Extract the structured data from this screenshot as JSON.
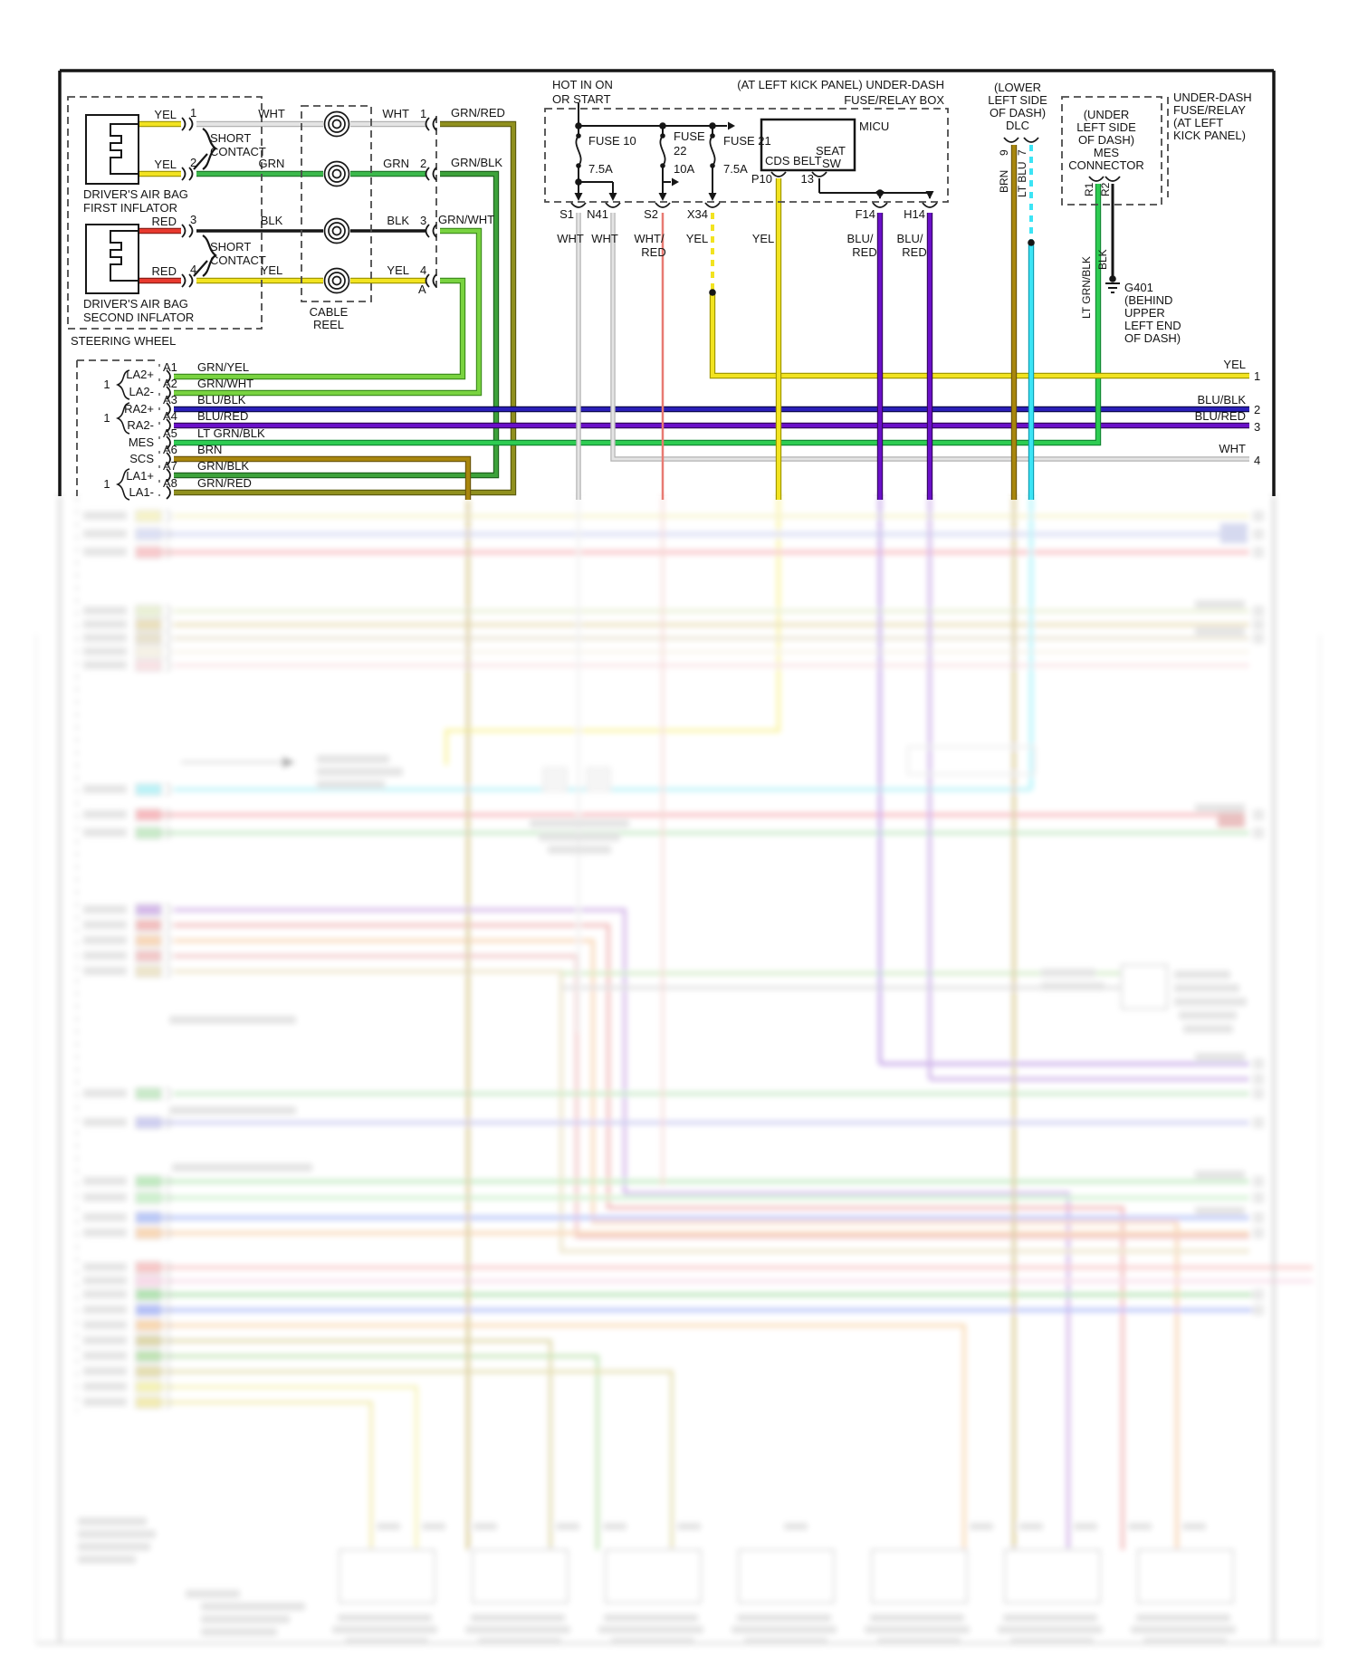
{
  "steering": {
    "label": "STEERING WHEEL",
    "first_inflator_l1": "DRIVER'S AIR BAG",
    "first_inflator_l2": "FIRST INFLATOR",
    "second_inflator_l1": "DRIVER'S AIR BAG",
    "second_inflator_l2": "SECOND INFLATOR",
    "short1": "SHORT",
    "contact1": "CONTACT",
    "short2": "SHORT",
    "contact2": "CONTACT",
    "pin_a": "A",
    "rows": [
      {
        "left": "YEL",
        "pin": "1",
        "mid": "WHT",
        "right": "WHT",
        "rnum": "1",
        "out": "GRN/RED"
      },
      {
        "left": "YEL",
        "pin": "2",
        "mid": "GRN",
        "right": "GRN",
        "rnum": "2",
        "out": "GRN/BLK"
      },
      {
        "left": "RED",
        "pin": "3",
        "mid": "BLK",
        "right": "BLK",
        "rnum": "3",
        "out": "GRN/WHT"
      },
      {
        "left": "RED",
        "pin": "4",
        "mid": "YEL",
        "right": "YEL",
        "rnum": "4",
        "out": ""
      }
    ]
  },
  "cable_reel": {
    "l1": "CABLE",
    "l2": "REEL"
  },
  "fuse_box": {
    "hot1": "HOT IN ON",
    "hot2": "OR START",
    "title1": "(AT LEFT KICK PANEL) UNDER-DASH",
    "title2": "FUSE/RELAY BOX",
    "fuse1_l1": "FUSE 10",
    "fuse1_amp": "7.5A",
    "fuse2_l1": "FUSE",
    "fuse2_l2": "22",
    "fuse2_amp": "10A",
    "fuse3_l1": "FUSE 21",
    "fuse3_amp": "7.5A",
    "micu": "MICU",
    "cds_belt": "CDS BELT",
    "seat1": "SEAT",
    "seat2": "SW",
    "p10": "P10",
    "pin13": "13"
  },
  "connectors": {
    "s1": "S1",
    "n41": "N41",
    "s2": "S2",
    "x34": "X34",
    "f14": "F14",
    "h14": "H14"
  },
  "wire_labels": {
    "s1": "WHT",
    "n41": "WHT",
    "s2a": "WHT/",
    "s2b": "RED",
    "x34": "YEL",
    "p10": "YEL",
    "f14a": "BLU/",
    "f14b": "RED",
    "h14a": "BLU/",
    "h14b": "RED"
  },
  "dlc": {
    "l1": "(LOWER",
    "l2": "LEFT SIDE",
    "l3": "OF DASH)",
    "l4": "DLC",
    "pin9": "9",
    "pin7": "7",
    "brn": "BRN",
    "lt_blu": "LT BLU"
  },
  "mes": {
    "l1": "(UNDER",
    "l2": "LEFT SIDE",
    "l3": "OF DASH)",
    "l4": "MES",
    "l5": "CONNECTOR",
    "r1": "R1",
    "r2": "R2",
    "lt_grn_blk": "LT GRN/BLK",
    "blk": "BLK"
  },
  "underdash": {
    "l1": "UNDER-DASH",
    "l2": "FUSE/RELAY",
    "l3": "(AT LEFT",
    "l4": "KICK PANEL)"
  },
  "g401": {
    "l1": "G401",
    "l2": "(BEHIND",
    "l3": "UPPER",
    "l4": "LEFT END",
    "l5": "OF DASH)"
  },
  "pin_list": {
    "ones": [
      "1",
      "1",
      "1"
    ],
    "groups": [
      "LA2+",
      "LA2-",
      "RA2+",
      "RA2-",
      "MES",
      "SCS",
      "LA1+",
      "LA1-"
    ],
    "pins": [
      {
        "id": "A1",
        "color": "GRN/YEL"
      },
      {
        "id": "A2",
        "color": "GRN/WHT"
      },
      {
        "id": "A3",
        "color": "BLU/BLK"
      },
      {
        "id": "A4",
        "color": "BLU/RED"
      },
      {
        "id": "A5",
        "color": "LT GRN/BLK"
      },
      {
        "id": "A6",
        "color": "BRN"
      },
      {
        "id": "A7",
        "color": "GRN/BLK"
      },
      {
        "id": "A8",
        "color": "GRN/RED"
      }
    ]
  },
  "right_exits": [
    {
      "label": "YEL",
      "num": "1"
    },
    {
      "label": "BLU/BLK",
      "num": "2"
    },
    {
      "label": "BLU/RED",
      "num": "3"
    },
    {
      "label": "WHT",
      "num": "4"
    }
  ],
  "accent_colors": {
    "yellow": "#f2e320",
    "green": "#3cb94c",
    "lime": "#79d340",
    "lt_green": "#2ecc52",
    "olive": "#90901e",
    "brown": "#a8860d",
    "red": "#e8392e",
    "blue": "#2a1fb8",
    "purple": "#6a10c8",
    "lt_blue": "#3ce4f5"
  }
}
